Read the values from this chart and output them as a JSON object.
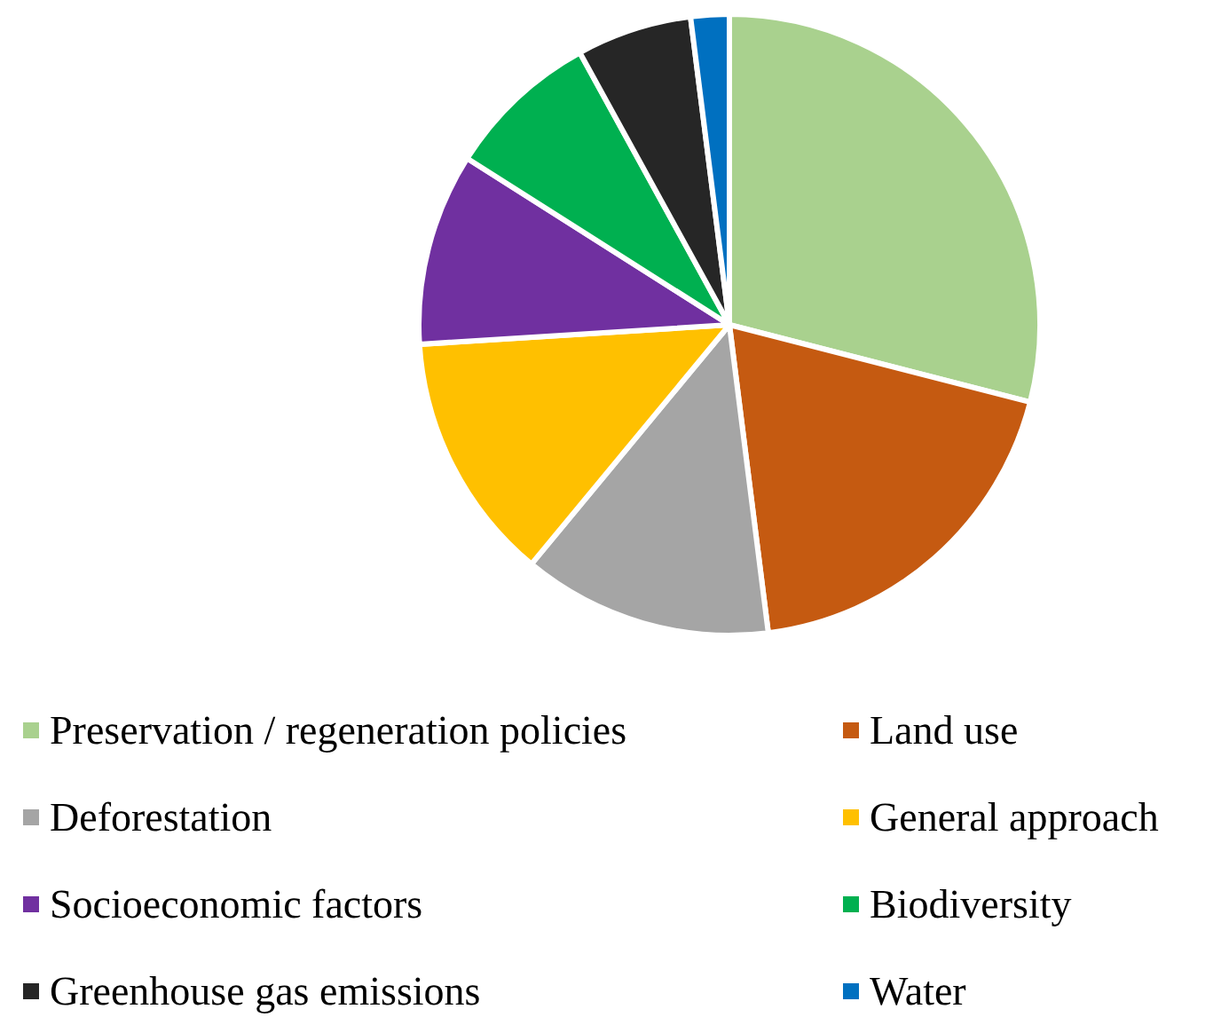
{
  "chart_data": {
    "type": "pie",
    "categories": [
      "Preservation / regeneration policies",
      "Land use",
      "Deforestation",
      "General approach",
      "Socioeconomic factors",
      "Biodiversity",
      "Greenhouse gas emissions",
      "Water"
    ],
    "values": [
      29,
      19,
      13,
      13,
      10,
      8,
      6,
      2
    ],
    "colors": [
      "#a9d18e",
      "#c55a11",
      "#a5a5a5",
      "#ffc000",
      "#7030a0",
      "#00b050",
      "#262626",
      "#0070c0"
    ],
    "legend": "bottom"
  }
}
